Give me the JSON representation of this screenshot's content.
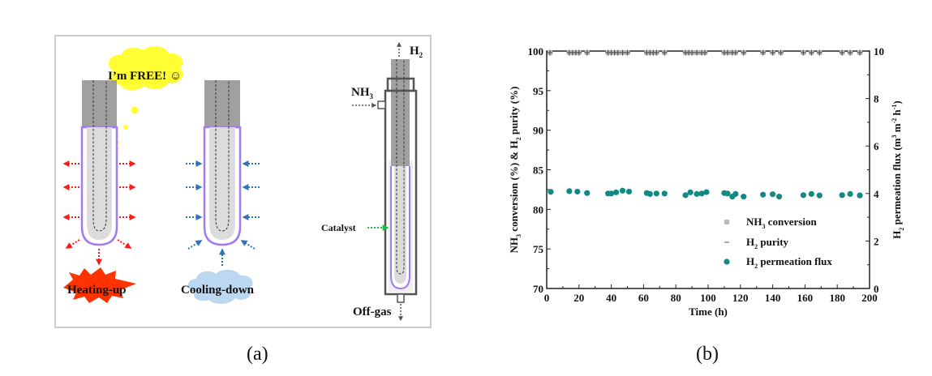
{
  "panel_a": {
    "caption": "(a)",
    "bubble_text": "I’m FREE! ☺",
    "heating_label": "Heating-up",
    "cooling_label": "Cooling-down",
    "h2_label": "H",
    "h2_sub": "2",
    "nh3_label": "NH",
    "nh3_sub": "3",
    "catalyst_label": "Catalyst",
    "offgas_label": "Off-gas",
    "colors": {
      "heat": "#ff1a1a",
      "cool": "#2e75b6",
      "membrane": "#a07cf0",
      "catalyst_arrow": "#22bb44",
      "bubble": "#ffff33",
      "burst": "#ff3300",
      "cloud": "#bcd7f0"
    }
  },
  "panel_b": {
    "caption": "(b)"
  },
  "chart_data": {
    "type": "scatter",
    "xlabel": "Time (h)",
    "ylabel": "NH3 conversion (%) & H2 purity (%)",
    "ylabel_parts": [
      "NH",
      "3",
      " conversion (%) & H",
      "2",
      " purity (%)"
    ],
    "y2label": "H2 permeation flux (m3 m-2 h-1)",
    "y2label_parts": [
      "H",
      "2",
      " permeation flux (m",
      "3",
      " m",
      "-2",
      " h",
      "-1",
      ")"
    ],
    "xlim": [
      0,
      200
    ],
    "ylim": [
      70,
      100
    ],
    "y2lim": [
      0,
      10
    ],
    "xticks": [
      0,
      20,
      40,
      60,
      80,
      100,
      120,
      140,
      160,
      180,
      200
    ],
    "yticks": [
      70,
      75,
      80,
      85,
      90,
      95,
      100
    ],
    "y2ticks": [
      0,
      2,
      4,
      6,
      8,
      10
    ],
    "legend_position": "bottom-right",
    "series": [
      {
        "name": "NH3 conversion",
        "legend_main": "NH",
        "legend_sub": "3",
        "legend_rest": " conversion",
        "marker": "square",
        "color": "#bbbbbb",
        "axis": "left",
        "x": [
          2,
          14,
          16,
          18,
          20,
          25,
          38,
          40,
          42,
          44,
          47,
          50,
          62,
          64,
          66,
          68,
          73,
          86,
          88,
          90,
          93,
          96,
          98,
          110,
          112,
          115,
          117,
          122,
          134,
          140,
          145,
          159,
          164,
          169,
          183,
          188,
          194
        ],
        "y": [
          99.8,
          99.8,
          99.8,
          99.8,
          99.8,
          99.8,
          99.8,
          99.8,
          99.8,
          99.8,
          99.8,
          99.8,
          99.8,
          99.8,
          99.8,
          99.8,
          99.8,
          99.8,
          99.8,
          99.8,
          99.8,
          99.8,
          99.8,
          99.8,
          99.8,
          99.8,
          99.8,
          99.8,
          99.8,
          99.8,
          99.8,
          99.8,
          99.8,
          99.8,
          99.8,
          99.8,
          99.8
        ]
      },
      {
        "name": "H2 purity",
        "legend_main": "H",
        "legend_sub": "2",
        "legend_rest": " purity",
        "marker": "plus",
        "color": "#555555",
        "axis": "left",
        "x": [
          2,
          14,
          16,
          18,
          20,
          25,
          38,
          40,
          42,
          44,
          47,
          50,
          62,
          64,
          66,
          68,
          73,
          86,
          88,
          90,
          93,
          96,
          98,
          110,
          112,
          115,
          117,
          122,
          134,
          140,
          145,
          159,
          164,
          169,
          183,
          188,
          194
        ],
        "y": [
          99.8,
          99.8,
          99.8,
          99.8,
          99.8,
          99.8,
          99.8,
          99.8,
          99.8,
          99.8,
          99.8,
          99.8,
          99.8,
          99.8,
          99.8,
          99.8,
          99.8,
          99.8,
          99.8,
          99.8,
          99.8,
          99.8,
          99.8,
          99.8,
          99.8,
          99.8,
          99.8,
          99.8,
          99.8,
          99.8,
          99.8,
          99.8,
          99.8,
          99.8,
          99.8,
          99.8,
          99.8
        ]
      },
      {
        "name": "H2 permeation flux",
        "legend_main": "H",
        "legend_sub": "2",
        "legend_rest": " permeation flux",
        "marker": "circle",
        "color": "#128a84",
        "axis": "right",
        "x": [
          2.5,
          14,
          19,
          25,
          38,
          40,
          43,
          47,
          51,
          62,
          64,
          68,
          73,
          86,
          89,
          93,
          96,
          99,
          110,
          112,
          115,
          117,
          122,
          134,
          140,
          144,
          159,
          164,
          169,
          183,
          188,
          194
        ],
        "y": [
          4.07,
          4.1,
          4.08,
          4.02,
          4.0,
          4.0,
          4.05,
          4.12,
          4.08,
          4.02,
          3.98,
          4.0,
          4.0,
          3.93,
          4.05,
          3.98,
          4.0,
          4.06,
          4.02,
          4.0,
          3.87,
          3.98,
          3.87,
          3.95,
          3.97,
          3.87,
          3.93,
          3.98,
          3.92,
          3.93,
          3.98,
          3.92
        ]
      }
    ]
  }
}
